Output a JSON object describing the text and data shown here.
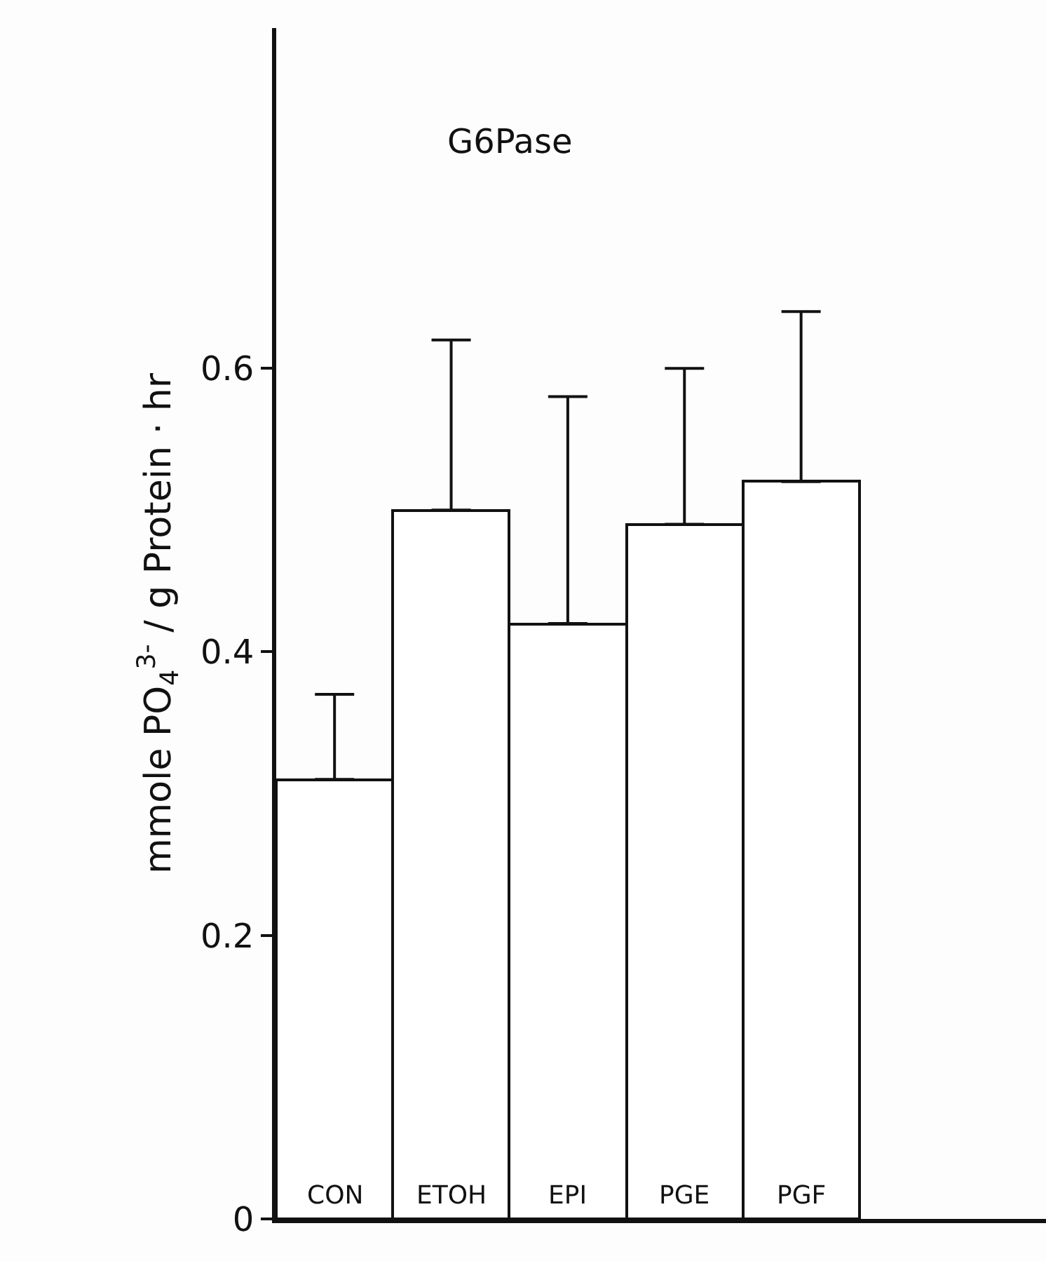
{
  "chart_data": {
    "type": "bar",
    "title": "G6Pase",
    "ylabel": "mmole PO$_{4}$$^{3-}$ / g Protein · hr",
    "categories": [
      "CON",
      "ETOH",
      "EPI",
      "PGE",
      "PGF"
    ],
    "values": [
      0.31,
      0.5,
      0.42,
      0.49,
      0.52
    ],
    "errors": [
      [
        0.31,
        0.37
      ],
      [
        0.5,
        0.62
      ],
      [
        0.42,
        0.58
      ],
      [
        0.49,
        0.6
      ],
      [
        0.52,
        0.64
      ]
    ],
    "color": "#ffffff",
    "ylim": [
      0,
      0.84
    ],
    "yticks": [
      {
        "value": 0,
        "label": "0"
      },
      0.2,
      0.4,
      0.6
    ]
  }
}
